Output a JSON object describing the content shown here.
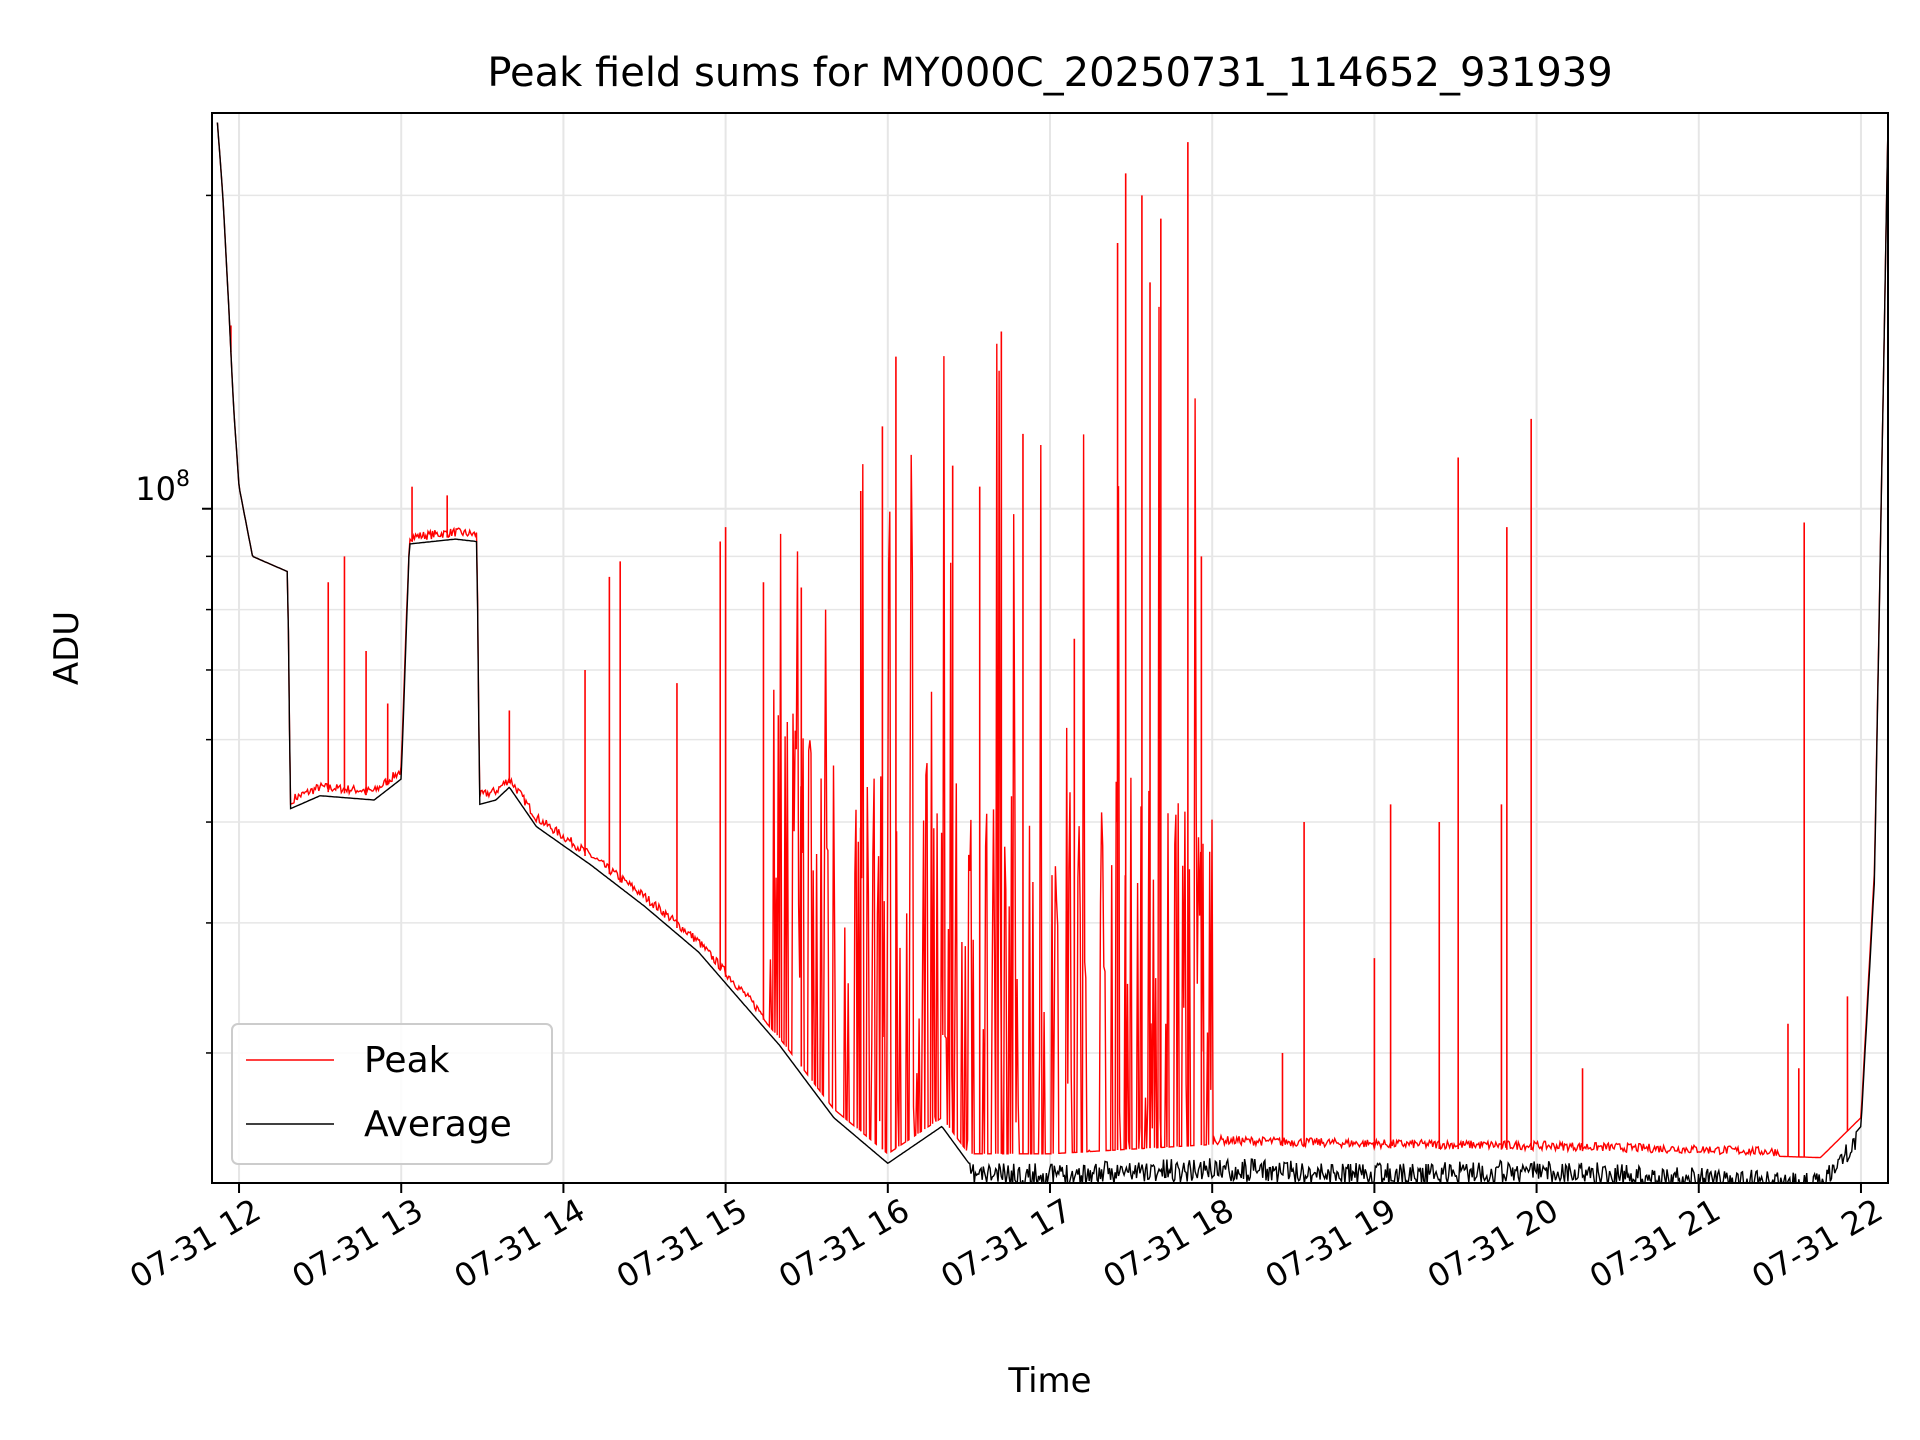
{
  "chart_data": {
    "type": "line",
    "title": "Peak field sums for MY000C_20250731_114652_931939",
    "xlabel": "Time",
    "ylabel": "ADU",
    "y_scale": "log",
    "y_tick_label": {
      "base": "10",
      "exp": "8",
      "value": 100000000
    },
    "y_minor_ticks": [
      30000000,
      40000000,
      50000000,
      60000000,
      70000000,
      80000000,
      90000000,
      200000000
    ],
    "ylim": [
      22500000,
      240000000
    ],
    "xlim": [
      "2025-07-31 11:50",
      "2025-07-31 22:10"
    ],
    "x_tick_labels": [
      "07-31 12",
      "07-31 13",
      "07-31 14",
      "07-31 15",
      "07-31 16",
      "07-31 17",
      "07-31 18",
      "07-31 19",
      "07-31 20",
      "07-31 21",
      "07-31 22"
    ],
    "grid": true,
    "legend": {
      "position": "lower-left",
      "entries": [
        "Peak",
        "Average"
      ]
    },
    "series": [
      {
        "name": "Peak",
        "color": "#ff0000",
        "baseline": [
          [
            "2025-07-31 11:52",
            235000000
          ],
          [
            "2025-07-31 11:54",
            200000000
          ],
          [
            "2025-07-31 11:56",
            160000000
          ],
          [
            "2025-07-31 11:58",
            125000000
          ],
          [
            "2025-07-31 12:00",
            105000000
          ],
          [
            "2025-07-31 12:05",
            90000000
          ],
          [
            "2025-07-31 12:18",
            87000000
          ],
          [
            "2025-07-31 12:19",
            52000000
          ],
          [
            "2025-07-31 12:30",
            53500000
          ],
          [
            "2025-07-31 12:50",
            53000000
          ],
          [
            "2025-07-31 13:00",
            55500000
          ],
          [
            "2025-07-31 13:03",
            93000000
          ],
          [
            "2025-07-31 13:20",
            94000000
          ],
          [
            "2025-07-31 13:28",
            93500000
          ],
          [
            "2025-07-31 13:29",
            52500000
          ],
          [
            "2025-07-31 13:35",
            53000000
          ],
          [
            "2025-07-31 13:40",
            54500000
          ],
          [
            "2025-07-31 13:50",
            50000000
          ],
          [
            "2025-07-31 14:10",
            46000000
          ],
          [
            "2025-07-31 14:30",
            42000000
          ],
          [
            "2025-07-31 14:50",
            38000000
          ],
          [
            "2025-07-31 15:00",
            35500000
          ],
          [
            "2025-07-31 15:20",
            31000000
          ],
          [
            "2025-07-31 15:40",
            26500000
          ],
          [
            "2025-07-31 16:00",
            24000000
          ],
          [
            "2025-07-31 16:20",
            26000000
          ],
          [
            "2025-07-31 16:30",
            24000000
          ],
          [
            "2025-07-31 17:00",
            24000000
          ],
          [
            "2025-07-31 18:00",
            24500000
          ],
          [
            "2025-07-31 19:00",
            24300000
          ],
          [
            "2025-07-31 20:00",
            24200000
          ],
          [
            "2025-07-31 21:00",
            24000000
          ],
          [
            "2025-07-31 21:45",
            23800000
          ],
          [
            "2025-07-31 22:00",
            26000000
          ],
          [
            "2025-07-31 22:05",
            45000000
          ],
          [
            "2025-07-31 22:08",
            120000000
          ],
          [
            "2025-07-31 22:10",
            235000000
          ]
        ],
        "spikes": [
          [
            "2025-07-31 11:57",
            150000000
          ],
          [
            "2025-07-31 12:33",
            85000000
          ],
          [
            "2025-07-31 12:39",
            90000000
          ],
          [
            "2025-07-31 12:47",
            73000000
          ],
          [
            "2025-07-31 12:55",
            65000000
          ],
          [
            "2025-07-31 13:04",
            105000000
          ],
          [
            "2025-07-31 13:17",
            103000000
          ],
          [
            "2025-07-31 13:40",
            64000000
          ],
          [
            "2025-07-31 14:08",
            70000000
          ],
          [
            "2025-07-31 14:17",
            86000000
          ],
          [
            "2025-07-31 14:21",
            89000000
          ],
          [
            "2025-07-31 14:42",
            68000000
          ],
          [
            "2025-07-31 14:58",
            93000000
          ],
          [
            "2025-07-31 15:00",
            96000000
          ],
          [
            "2025-07-31 15:14",
            85000000
          ],
          [
            "2025-07-31 15:28",
            84000000
          ],
          [
            "2025-07-31 15:50",
            104000000
          ],
          [
            "2025-07-31 15:58",
            120000000
          ],
          [
            "2025-07-31 16:03",
            140000000
          ],
          [
            "2025-07-31 16:24",
            110000000
          ],
          [
            "2025-07-31 16:34",
            105000000
          ],
          [
            "2025-07-31 16:42",
            148000000
          ],
          [
            "2025-07-31 16:50",
            118000000
          ],
          [
            "2025-07-31 17:09",
            75000000
          ],
          [
            "2025-07-31 17:25",
            180000000
          ],
          [
            "2025-07-31 17:28",
            210000000
          ],
          [
            "2025-07-31 17:34",
            200000000
          ],
          [
            "2025-07-31 17:37",
            165000000
          ],
          [
            "2025-07-31 17:41",
            190000000
          ],
          [
            "2025-07-31 17:51",
            225000000
          ],
          [
            "2025-07-31 17:56",
            90000000
          ],
          [
            "2025-07-31 18:26",
            30000000
          ],
          [
            "2025-07-31 18:34",
            50000000
          ],
          [
            "2025-07-31 19:00",
            37000000
          ],
          [
            "2025-07-31 19:06",
            52000000
          ],
          [
            "2025-07-31 19:24",
            50000000
          ],
          [
            "2025-07-31 19:31",
            112000000
          ],
          [
            "2025-07-31 19:47",
            52000000
          ],
          [
            "2025-07-31 19:49",
            96000000
          ],
          [
            "2025-07-31 19:58",
            122000000
          ],
          [
            "2025-07-31 20:17",
            29000000
          ],
          [
            "2025-07-31 21:33",
            32000000
          ],
          [
            "2025-07-31 21:37",
            29000000
          ],
          [
            "2025-07-31 21:39",
            97000000
          ],
          [
            "2025-07-31 21:55",
            34000000
          ]
        ]
      },
      {
        "name": "Average",
        "color": "#000000",
        "baseline": [
          [
            "2025-07-31 11:52",
            235000000
          ],
          [
            "2025-07-31 11:54",
            200000000
          ],
          [
            "2025-07-31 11:56",
            160000000
          ],
          [
            "2025-07-31 11:58",
            125000000
          ],
          [
            "2025-07-31 12:00",
            105000000
          ],
          [
            "2025-07-31 12:05",
            90000000
          ],
          [
            "2025-07-31 12:18",
            87000000
          ],
          [
            "2025-07-31 12:19",
            51500000
          ],
          [
            "2025-07-31 12:30",
            53000000
          ],
          [
            "2025-07-31 12:50",
            52500000
          ],
          [
            "2025-07-31 13:00",
            55000000
          ],
          [
            "2025-07-31 13:03",
            92500000
          ],
          [
            "2025-07-31 13:20",
            93500000
          ],
          [
            "2025-07-31 13:28",
            93000000
          ],
          [
            "2025-07-31 13:29",
            52000000
          ],
          [
            "2025-07-31 13:35",
            52500000
          ],
          [
            "2025-07-31 13:40",
            54000000
          ],
          [
            "2025-07-31 13:50",
            49500000
          ],
          [
            "2025-07-31 14:10",
            45500000
          ],
          [
            "2025-07-31 14:30",
            41500000
          ],
          [
            "2025-07-31 14:50",
            37500000
          ],
          [
            "2025-07-31 15:00",
            35000000
          ],
          [
            "2025-07-31 15:20",
            30500000
          ],
          [
            "2025-07-31 15:40",
            26000000
          ],
          [
            "2025-07-31 16:00",
            23500000
          ],
          [
            "2025-07-31 16:20",
            25500000
          ],
          [
            "2025-07-31 16:30",
            23500000
          ],
          [
            "2025-07-31 17:00",
            23500000
          ],
          [
            "2025-07-31 18:00",
            23800000
          ],
          [
            "2025-07-31 19:00",
            23500000
          ],
          [
            "2025-07-31 20:00",
            23700000
          ],
          [
            "2025-07-31 21:00",
            23300000
          ],
          [
            "2025-07-31 21:45",
            23000000
          ],
          [
            "2025-07-31 22:00",
            25500000
          ],
          [
            "2025-07-31 22:05",
            44000000
          ],
          [
            "2025-07-31 22:08",
            120000000
          ],
          [
            "2025-07-31 22:10",
            235000000
          ]
        ]
      }
    ]
  }
}
